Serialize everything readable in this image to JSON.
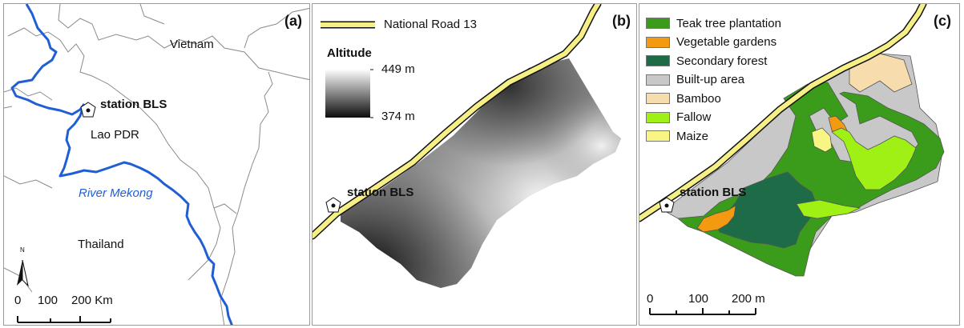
{
  "panel_a": {
    "label": "(a)",
    "countries": {
      "vietnam": "Vietnam",
      "laos": "Lao PDR",
      "thailand": "Thailand"
    },
    "river": "River Mekong",
    "station": "station BLS",
    "north_arrow": "N",
    "scale": {
      "t0": "0",
      "t1": "100",
      "t2": "200 Km"
    },
    "colors": {
      "river": "#1f5fd6",
      "border": "#8a8a8a"
    }
  },
  "panel_b": {
    "label": "(b)",
    "road": "National Road 13",
    "altitude_title": "Altitude",
    "altitude_max": "449 m",
    "altitude_min": "374 m",
    "station": "station BLS",
    "colors": {
      "road_fill": "#f6ef86",
      "road_edge": "#111111"
    }
  },
  "panel_c": {
    "label": "(c)",
    "station": "station BLS",
    "scale": {
      "t0": "0",
      "t1": "100",
      "t2": "200 m"
    },
    "legend": [
      {
        "label": "Teak tree plantation",
        "color": "#3a9c1a"
      },
      {
        "label": "Vegetable gardens",
        "color": "#f39a10"
      },
      {
        "label": "Secondary forest",
        "color": "#1e6b47"
      },
      {
        "label": "Built-up area",
        "color": "#c8c8c8"
      },
      {
        "label": "Bamboo",
        "color": "#f7dcae"
      },
      {
        "label": "Fallow",
        "color": "#9ff014"
      },
      {
        "label": "Maize",
        "color": "#f8f584"
      }
    ]
  }
}
